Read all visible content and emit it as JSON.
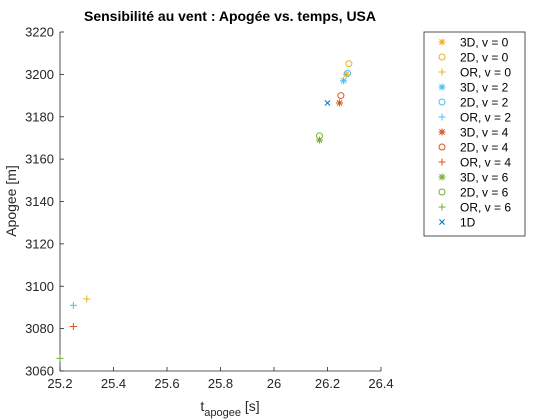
{
  "chart_data": {
    "type": "scatter",
    "title": "Sensibilité au vent : Apogée vs. temps, USA",
    "xlabel": {
      "main": "t",
      "sub": "apogee",
      "unit": " [s]"
    },
    "ylabel": "Apogee [m]",
    "xlim": [
      25.2,
      26.4
    ],
    "ylim": [
      3060,
      3220
    ],
    "x_ticks": [
      "25.2",
      "25.4",
      "25.6",
      "25.8",
      "26",
      "26.2",
      "26.4"
    ],
    "y_ticks": [
      "3060",
      "3080",
      "3100",
      "3120",
      "3140",
      "3160",
      "3180",
      "3200",
      "3220"
    ],
    "grid": false,
    "legend_position": "outside-right",
    "series": [
      {
        "name": "3D, v = 0",
        "marker": "asterisk",
        "color": "#EDB120",
        "points": [
          [
            26.27,
            3200
          ]
        ]
      },
      {
        "name": "2D, v = 0",
        "marker": "circle",
        "color": "#EDB120",
        "points": [
          [
            26.28,
            3205
          ]
        ]
      },
      {
        "name": "OR, v = 0",
        "marker": "plus",
        "color": "#EDB120",
        "points": [
          [
            25.3,
            3094
          ]
        ]
      },
      {
        "name": "3D, v = 2",
        "marker": "asterisk",
        "color": "#4DBEEE",
        "points": [
          [
            26.26,
            3197
          ]
        ]
      },
      {
        "name": "2D, v = 2",
        "marker": "circle",
        "color": "#4DBEEE",
        "points": [
          [
            26.275,
            3200.5
          ]
        ]
      },
      {
        "name": "OR, v = 2",
        "marker": "plus",
        "color": "#4DBEEE",
        "points": [
          [
            25.25,
            3091
          ]
        ]
      },
      {
        "name": "3D, v = 4",
        "marker": "asterisk",
        "color": "#D95319",
        "points": [
          [
            26.245,
            3186.5
          ]
        ]
      },
      {
        "name": "2D, v = 4",
        "marker": "circle",
        "color": "#D95319",
        "points": [
          [
            26.25,
            3190
          ]
        ]
      },
      {
        "name": "OR, v = 4",
        "marker": "plus",
        "color": "#D95319",
        "points": [
          [
            25.25,
            3081
          ]
        ]
      },
      {
        "name": "3D, v = 6",
        "marker": "asterisk",
        "color": "#77AC30",
        "points": [
          [
            26.17,
            3169
          ]
        ]
      },
      {
        "name": "2D, v = 6",
        "marker": "circle",
        "color": "#77AC30",
        "points": [
          [
            26.17,
            3171
          ]
        ]
      },
      {
        "name": "OR, v = 6",
        "marker": "plus",
        "color": "#77AC30",
        "points": [
          [
            25.2,
            3066
          ]
        ]
      },
      {
        "name": "1D",
        "marker": "x",
        "color": "#0072BD",
        "points": [
          [
            26.2,
            3186.5
          ]
        ]
      }
    ]
  }
}
